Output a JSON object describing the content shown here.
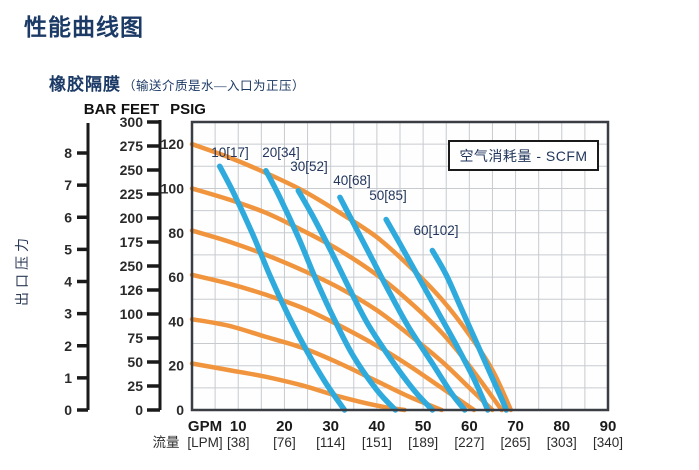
{
  "page": {
    "title": "性能曲线图",
    "subtitle_main": "橡胶隔膜",
    "subtitle_note": "（输送介质是水—入口为正压）"
  },
  "legend": {
    "label": "空气消耗量 - SCFM"
  },
  "chart_data": {
    "type": "line",
    "title": "橡胶隔膜 性能曲线",
    "grid": true,
    "x_axis": {
      "label_primary": "GPM",
      "label_secondary_cjk": "流量",
      "label_secondary_unit": "[LPM]",
      "range_gpm": [
        0,
        90
      ],
      "grid_step_gpm": 5,
      "ticks_gpm": [
        "10",
        "20",
        "30",
        "40",
        "50",
        "60",
        "70",
        "80",
        "90"
      ],
      "ticks_gpm_values": [
        10,
        20,
        30,
        40,
        50,
        60,
        70,
        80,
        90
      ],
      "ticks_lpm": [
        "[38]",
        "[76]",
        "[114]",
        "[151]",
        "[189]",
        "[227]",
        "[265]",
        "[303]",
        "[340]"
      ]
    },
    "y_axis": {
      "title": "出口压力",
      "units": [
        "BAR",
        "FEET",
        "PSIG"
      ],
      "range_psig": [
        0,
        130
      ],
      "grid_step_psig": 10,
      "psig_ticks": [
        "120",
        "100",
        "80",
        "60",
        "40",
        "20",
        "0"
      ],
      "psig_tick_values": [
        120,
        100,
        80,
        60,
        40,
        20,
        0
      ],
      "feet_tick_labels": [
        "300",
        "275",
        "250",
        "225",
        "200",
        "175",
        "250",
        "126",
        "100",
        "75",
        "50",
        "25",
        "0"
      ],
      "bar_tick_labels": [
        "8",
        "7",
        "6",
        "5",
        "4",
        "3",
        "2",
        "1",
        "0"
      ],
      "bar_tick_values": [
        8,
        7,
        6,
        5,
        4,
        3,
        2,
        1,
        0
      ],
      "psi_per_bar": 14.5,
      "psi_per_300feet": 130
    },
    "series_pressure_curves": {
      "name": "discharge-pressure-curves",
      "color": "#F0953E",
      "curves": [
        {
          "inlet_psi": 120,
          "points": [
            [
              0,
              120
            ],
            [
              8,
              114
            ],
            [
              16,
              107
            ],
            [
              24,
              99
            ],
            [
              32,
              89
            ],
            [
              40,
              78
            ],
            [
              47,
              65
            ],
            [
              54,
              50
            ],
            [
              60,
              34
            ],
            [
              65,
              18
            ],
            [
              69,
              0
            ]
          ]
        },
        {
          "inlet_psi": 100,
          "points": [
            [
              0,
              100
            ],
            [
              8,
              95
            ],
            [
              16,
              89
            ],
            [
              24,
              81
            ],
            [
              32,
              72
            ],
            [
              40,
              61
            ],
            [
              47,
              49
            ],
            [
              54,
              35
            ],
            [
              60,
              20
            ],
            [
              67,
              0
            ]
          ]
        },
        {
          "inlet_psi": 80,
          "points": [
            [
              0,
              81
            ],
            [
              8,
              76
            ],
            [
              16,
              70
            ],
            [
              24,
              63
            ],
            [
              32,
              55
            ],
            [
              40,
              45
            ],
            [
              47,
              34
            ],
            [
              54,
              22
            ],
            [
              60,
              10
            ],
            [
              65,
              0
            ]
          ]
        },
        {
          "inlet_psi": 60,
          "points": [
            [
              0,
              61
            ],
            [
              8,
              57
            ],
            [
              16,
              52
            ],
            [
              24,
              46
            ],
            [
              32,
              38
            ],
            [
              40,
              29
            ],
            [
              47,
              20
            ],
            [
              54,
              10
            ],
            [
              61,
              0
            ]
          ]
        },
        {
          "inlet_psi": 40,
          "points": [
            [
              0,
              41
            ],
            [
              8,
              38
            ],
            [
              16,
              33
            ],
            [
              24,
              28
            ],
            [
              32,
              21
            ],
            [
              40,
              13
            ],
            [
              47,
              6
            ],
            [
              54,
              0
            ]
          ]
        },
        {
          "inlet_psi": 20,
          "points": [
            [
              0,
              21
            ],
            [
              8,
              18
            ],
            [
              16,
              15
            ],
            [
              24,
              11
            ],
            [
              32,
              6
            ],
            [
              40,
              2
            ],
            [
              46,
              0
            ]
          ]
        }
      ]
    },
    "series_air_consumption": {
      "name": "air-consumption-scfm-curves",
      "color": "#2FAADC",
      "curves": [
        {
          "label": "10[17]",
          "points": [
            [
              6,
              110
            ],
            [
              9,
              98
            ],
            [
              13,
              80
            ],
            [
              17,
              60
            ],
            [
              21,
              42
            ],
            [
              25,
              26
            ],
            [
              29,
              12
            ],
            [
              33,
              0
            ]
          ]
        },
        {
          "label": "20[34]",
          "points": [
            [
              16,
              108
            ],
            [
              19,
              96
            ],
            [
              23,
              78
            ],
            [
              27,
              58
            ],
            [
              31,
              40
            ],
            [
              35,
              24
            ],
            [
              40,
              9
            ],
            [
              44,
              0
            ]
          ]
        },
        {
          "label": "30[52]",
          "points": [
            [
              23,
              99
            ],
            [
              26,
              88
            ],
            [
              30,
              72
            ],
            [
              34,
              55
            ],
            [
              38,
              39
            ],
            [
              43,
              23
            ],
            [
              48,
              9
            ],
            [
              52,
              0
            ]
          ]
        },
        {
          "label": "40[68]",
          "points": [
            [
              32,
              96
            ],
            [
              35,
              84
            ],
            [
              39,
              68
            ],
            [
              43,
              52
            ],
            [
              47,
              37
            ],
            [
              52,
              21
            ],
            [
              56,
              8
            ],
            [
              59,
              0
            ]
          ]
        },
        {
          "label": "50[85]",
          "points": [
            [
              42,
              86
            ],
            [
              45,
              75
            ],
            [
              49,
              60
            ],
            [
              53,
              45
            ],
            [
              57,
              30
            ],
            [
              61,
              14
            ],
            [
              64,
              0
            ]
          ]
        },
        {
          "label": "60[102]",
          "points": [
            [
              52,
              72
            ],
            [
              55,
              61
            ],
            [
              58,
              47
            ],
            [
              61,
              33
            ],
            [
              64,
              19
            ],
            [
              67,
              5
            ],
            [
              68,
              0
            ]
          ]
        }
      ]
    }
  }
}
